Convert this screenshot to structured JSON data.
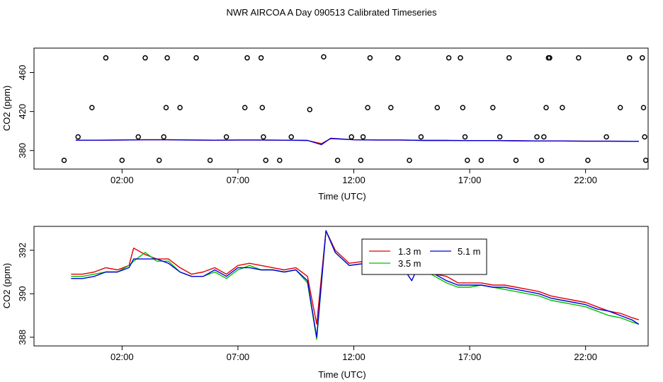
{
  "title": "NWR AIRCOA A  Day 090513  Calibrated Timeseries",
  "colors": {
    "red": "#e00000",
    "green": "#00c000",
    "blue": "#0000e0",
    "axis": "#000000"
  },
  "chart_data": [
    {
      "type": "scatter",
      "xlabel": "Time (UTC)",
      "ylabel": "CO2 (ppm)",
      "xlim": [
        -1.8,
        24.7
      ],
      "ylim": [
        361,
        485
      ],
      "x_ticks": [
        2,
        7,
        12,
        17,
        22
      ],
      "x_tick_labels": [
        "02:00",
        "07:00",
        "12:00",
        "17:00",
        "22:00"
      ],
      "y_ticks": [
        380,
        420,
        460
      ],
      "y_tick_labels": [
        "380",
        "420",
        "460"
      ],
      "points": [
        [
          -0.5,
          370
        ],
        [
          0.1,
          394
        ],
        [
          0.7,
          424
        ],
        [
          1.3,
          475
        ],
        [
          2.0,
          370
        ],
        [
          2.7,
          394
        ],
        [
          3.0,
          475
        ],
        [
          3.6,
          370
        ],
        [
          3.8,
          394
        ],
        [
          3.9,
          424
        ],
        [
          3.95,
          475
        ],
        [
          4.5,
          424
        ],
        [
          5.2,
          475
        ],
        [
          5.8,
          370
        ],
        [
          6.5,
          394
        ],
        [
          7.3,
          424
        ],
        [
          7.4,
          475
        ],
        [
          8.0,
          475
        ],
        [
          8.05,
          424
        ],
        [
          8.1,
          394
        ],
        [
          8.2,
          370
        ],
        [
          8.8,
          370
        ],
        [
          9.3,
          394
        ],
        [
          10.1,
          422
        ],
        [
          10.7,
          476
        ],
        [
          11.3,
          370
        ],
        [
          11.9,
          394
        ],
        [
          12.3,
          370
        ],
        [
          12.4,
          394
        ],
        [
          12.6,
          424
        ],
        [
          12.7,
          475
        ],
        [
          13.6,
          424
        ],
        [
          13.9,
          475
        ],
        [
          14.4,
          370
        ],
        [
          14.9,
          394
        ],
        [
          15.6,
          424
        ],
        [
          16.1,
          475
        ],
        [
          16.6,
          475
        ],
        [
          16.7,
          424
        ],
        [
          16.8,
          394
        ],
        [
          16.9,
          370
        ],
        [
          17.5,
          370
        ],
        [
          18.0,
          424
        ],
        [
          18.3,
          394
        ],
        [
          18.7,
          475
        ],
        [
          19.0,
          370
        ],
        [
          19.9,
          394
        ],
        [
          20.1,
          370
        ],
        [
          20.2,
          394
        ],
        [
          20.3,
          424
        ],
        [
          20.4,
          475
        ],
        [
          20.45,
          475
        ],
        [
          21.0,
          424
        ],
        [
          21.7,
          475
        ],
        [
          22.1,
          370
        ],
        [
          22.9,
          394
        ],
        [
          23.5,
          424
        ],
        [
          23.9,
          475
        ],
        [
          24.45,
          475
        ],
        [
          24.5,
          424
        ],
        [
          24.55,
          394
        ],
        [
          24.6,
          370
        ]
      ],
      "series": [
        {
          "color": "red",
          "x": [
            0,
            1,
            2,
            3,
            4,
            5,
            6,
            7,
            8,
            9,
            10,
            10.6,
            11,
            12,
            13,
            14,
            15,
            16,
            17,
            18,
            19,
            20,
            21,
            22,
            23,
            24.3
          ],
          "y": [
            390.6,
            390.6,
            390.8,
            391.0,
            391.0,
            390.8,
            390.6,
            390.8,
            390.8,
            390.6,
            390.4,
            387.0,
            392.2,
            391.0,
            390.8,
            390.8,
            390.4,
            390.4,
            390.2,
            390.2,
            390.0,
            389.8,
            389.8,
            389.6,
            389.6,
            389.4
          ]
        },
        {
          "color": "blue",
          "x": [
            0,
            1,
            2,
            3,
            4,
            5,
            6,
            7,
            8,
            9,
            10,
            10.6,
            11,
            12,
            13,
            14,
            15,
            16,
            17,
            18,
            19,
            20,
            21,
            22,
            23,
            24.3
          ],
          "y": [
            390.6,
            390.6,
            390.8,
            391.0,
            391.0,
            390.8,
            390.6,
            390.8,
            390.8,
            390.6,
            390.4,
            386.0,
            392.6,
            391.0,
            390.8,
            390.8,
            390.4,
            390.4,
            390.2,
            390.2,
            390.0,
            389.8,
            389.8,
            389.6,
            389.6,
            389.4
          ]
        }
      ]
    },
    {
      "type": "line",
      "xlabel": "Time (UTC)",
      "ylabel": "CO2 (ppm)",
      "xlim": [
        -1.8,
        24.7
      ],
      "ylim": [
        387.6,
        393.1
      ],
      "x_ticks": [
        2,
        7,
        12,
        17,
        22
      ],
      "x_tick_labels": [
        "02:00",
        "07:00",
        "12:00",
        "17:00",
        "22:00"
      ],
      "y_ticks": [
        388,
        390,
        392
      ],
      "y_tick_labels": [
        "388",
        "390",
        "392"
      ],
      "legend": [
        "1.3 m",
        "3.5 m",
        "5.1 m"
      ],
      "series": [
        {
          "name": "1.3 m",
          "color": "red",
          "x": [
            -0.2,
            0.3,
            0.8,
            1.3,
            1.8,
            2.3,
            2.5,
            3.0,
            3.5,
            4.0,
            4.5,
            5.0,
            5.5,
            6.0,
            6.5,
            7.0,
            7.5,
            8.0,
            8.5,
            9.0,
            9.5,
            10.0,
            10.4,
            10.8,
            11.2,
            11.8,
            12.5,
            13.0,
            13.5,
            14.0,
            14.5,
            15.0,
            15.5,
            16.0,
            16.5,
            17.0,
            17.5,
            18.0,
            18.5,
            19.0,
            19.5,
            20.0,
            20.5,
            21.0,
            21.5,
            22.0,
            22.5,
            23.0,
            23.5,
            24.0,
            24.3
          ],
          "y": [
            390.9,
            390.9,
            391.0,
            391.2,
            391.1,
            391.3,
            392.1,
            391.8,
            391.6,
            391.6,
            391.2,
            390.9,
            391.0,
            391.2,
            390.9,
            391.3,
            391.4,
            391.3,
            391.2,
            391.1,
            391.2,
            390.8,
            388.6,
            392.9,
            392.0,
            391.4,
            391.5,
            391.4,
            391.5,
            391.4,
            391.3,
            391.2,
            390.9,
            390.8,
            390.5,
            390.5,
            390.5,
            390.4,
            390.4,
            390.3,
            390.2,
            390.1,
            389.9,
            389.8,
            389.7,
            389.6,
            389.4,
            389.2,
            389.1,
            388.9,
            388.8
          ]
        },
        {
          "name": "3.5 m",
          "color": "green",
          "x": [
            -0.2,
            0.3,
            0.8,
            1.3,
            1.8,
            2.3,
            2.5,
            3.0,
            3.5,
            4.0,
            4.5,
            5.0,
            5.5,
            6.0,
            6.5,
            7.0,
            7.5,
            8.0,
            8.5,
            9.0,
            9.5,
            10.0,
            10.4,
            10.8,
            11.2,
            11.8,
            12.5,
            13.0,
            13.5,
            14.0,
            14.5,
            15.0,
            15.5,
            16.0,
            16.5,
            17.0,
            17.5,
            18.0,
            18.5,
            19.0,
            19.5,
            20.0,
            20.5,
            21.0,
            21.5,
            22.0,
            22.5,
            23.0,
            23.5,
            24.0,
            24.3
          ],
          "y": [
            390.8,
            390.8,
            390.9,
            391.0,
            391.0,
            391.3,
            391.5,
            391.9,
            391.5,
            391.5,
            391.0,
            390.8,
            390.8,
            391.0,
            390.7,
            391.1,
            391.3,
            391.1,
            391.1,
            391.0,
            391.1,
            390.5,
            387.9,
            392.9,
            391.9,
            391.3,
            391.4,
            391.3,
            391.6,
            391.6,
            391.2,
            391.1,
            390.8,
            390.5,
            390.3,
            390.3,
            390.4,
            390.3,
            390.2,
            390.1,
            390.0,
            389.9,
            389.7,
            389.6,
            389.5,
            389.4,
            389.2,
            389.0,
            388.9,
            388.7,
            388.6
          ]
        },
        {
          "name": "5.1 m",
          "color": "blue",
          "x": [
            -0.2,
            0.3,
            0.8,
            1.3,
            1.8,
            2.3,
            2.5,
            3.0,
            3.5,
            4.0,
            4.5,
            5.0,
            5.5,
            6.0,
            6.5,
            7.0,
            7.5,
            8.0,
            8.5,
            9.0,
            9.5,
            10.0,
            10.4,
            10.8,
            11.2,
            11.8,
            12.5,
            13.0,
            13.5,
            14.0,
            14.5,
            15.0,
            15.5,
            16.0,
            16.5,
            17.0,
            17.5,
            18.0,
            18.5,
            19.0,
            19.5,
            20.0,
            20.5,
            21.0,
            21.5,
            22.0,
            22.5,
            23.0,
            23.5,
            24.0,
            24.3
          ],
          "y": [
            390.7,
            390.7,
            390.8,
            391.0,
            391.0,
            391.2,
            391.6,
            391.6,
            391.6,
            391.4,
            391.0,
            390.8,
            390.8,
            391.1,
            390.8,
            391.2,
            391.2,
            391.1,
            391.1,
            391.0,
            391.1,
            390.6,
            388.0,
            392.9,
            391.9,
            391.3,
            391.4,
            391.4,
            391.4,
            391.4,
            390.6,
            391.8,
            390.9,
            390.6,
            390.4,
            390.4,
            390.4,
            390.3,
            390.3,
            390.2,
            390.1,
            390.0,
            389.8,
            389.7,
            389.6,
            389.5,
            389.3,
            389.2,
            389.0,
            388.8,
            388.6
          ]
        }
      ]
    }
  ]
}
